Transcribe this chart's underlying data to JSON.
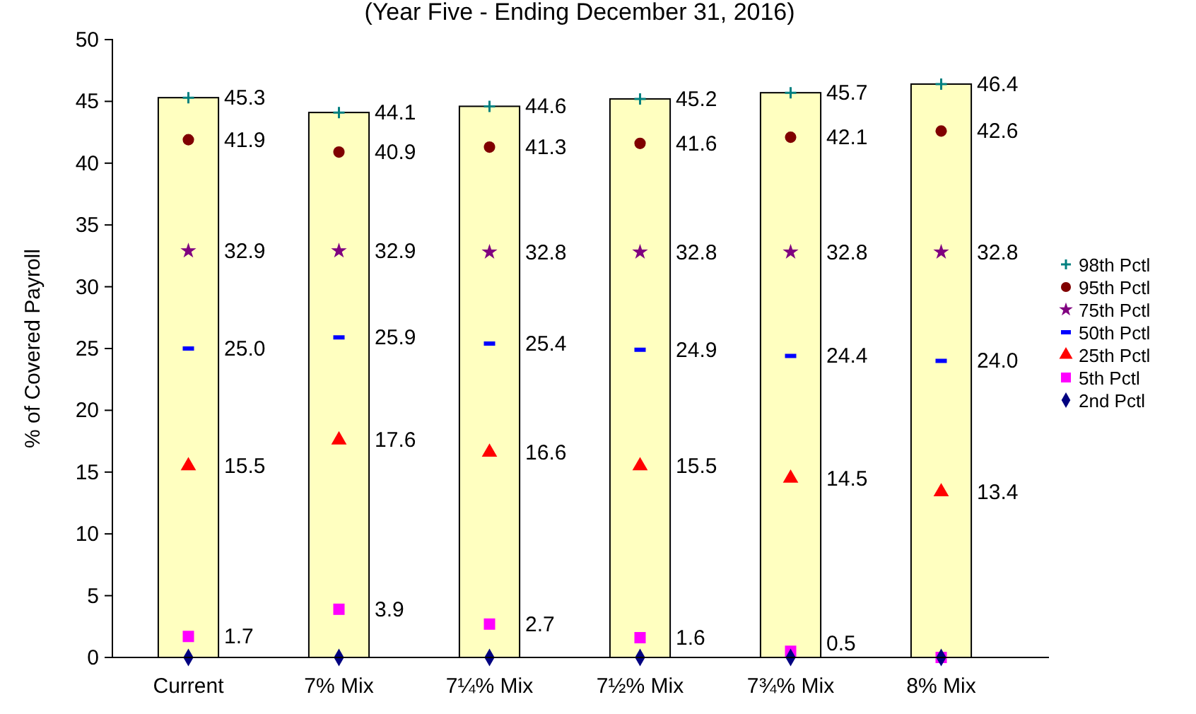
{
  "chart_data": {
    "type": "bar",
    "subtitle": "(Year Five - Ending December 31, 2016)",
    "ylabel": "% of Covered Payroll",
    "categories": [
      "Current",
      "7% Mix",
      "7¼% Mix",
      "7½% Mix",
      "7¾% Mix",
      "8% Mix"
    ],
    "values": [
      45.3,
      44.1,
      44.6,
      45.2,
      45.7,
      46.4
    ],
    "color": "#ffffc0",
    "series": [
      {
        "name": "98th Pctl",
        "type": "scatter",
        "color": "#008080",
        "marker": "cross",
        "values": [
          45.3,
          44.1,
          44.6,
          45.2,
          45.7,
          46.4
        ],
        "value_labels": [
          "45.3",
          "44.1",
          "44.6",
          "45.2",
          "45.7",
          "46.4"
        ]
      },
      {
        "name": "95th Pctl",
        "type": "scatter",
        "color": "#800000",
        "marker": "circle",
        "values": [
          41.9,
          40.9,
          41.3,
          41.6,
          42.1,
          42.6
        ],
        "value_labels": [
          "41.9",
          "40.9",
          "41.3",
          "41.6",
          "42.1",
          "42.6"
        ]
      },
      {
        "name": "75th Pctl",
        "type": "scatter",
        "color": "#800080",
        "marker": "star",
        "values": [
          32.9,
          32.9,
          32.8,
          32.8,
          32.8,
          32.8
        ],
        "value_labels": [
          "32.9",
          "32.9",
          "32.8",
          "32.8",
          "32.8",
          "32.8"
        ]
      },
      {
        "name": "50th Pctl",
        "type": "scatter",
        "color": "#0000ff",
        "values": [
          25.0,
          25.9,
          25.4,
          24.9,
          24.4,
          24.0
        ],
        "value_labels": [
          "25.0",
          "25.9",
          "25.4",
          "24.9",
          "24.4",
          "24.0"
        ]
      },
      {
        "name": "25th Pctl",
        "type": "scatter",
        "color": "#ff0000",
        "marker": "triangle",
        "values": [
          15.5,
          17.6,
          16.6,
          15.5,
          14.5,
          13.4
        ],
        "value_labels": [
          "15.5",
          "17.6",
          "16.6",
          "15.5",
          "14.5",
          "13.4"
        ]
      },
      {
        "name": "5th Pctl",
        "type": "scatter",
        "color": "#ff00ff",
        "marker": "square",
        "values": [
          1.7,
          3.9,
          2.7,
          1.6,
          0.5,
          0.0
        ],
        "value_labels": [
          "1.7",
          "3.9",
          "2.7",
          "1.6",
          "0.5",
          null
        ]
      },
      {
        "name": "2nd Pctl",
        "type": "scatter",
        "color": "#000080",
        "marker": "diamond",
        "values": [
          0.0,
          0.0,
          0.0,
          0.0,
          0.0,
          0.0
        ]
      }
    ],
    "ylim": [
      0,
      50
    ],
    "yticks": [
      0,
      5,
      10,
      15,
      20,
      25,
      30,
      35,
      40,
      45,
      50
    ],
    "legend": "right",
    "grid": false
  }
}
